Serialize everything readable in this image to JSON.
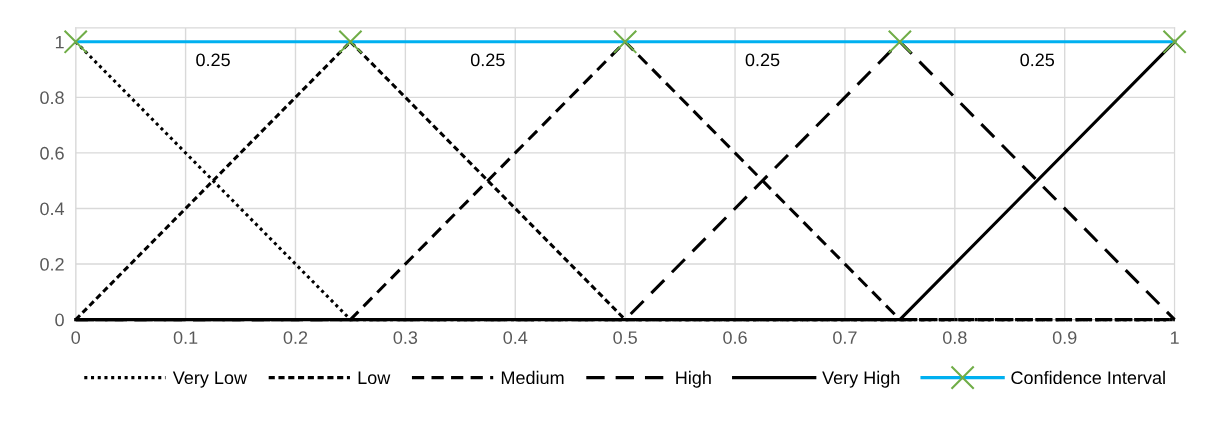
{
  "chart_data": {
    "type": "line",
    "xlim": [
      0,
      1
    ],
    "ylim": [
      0,
      1.05
    ],
    "xticks": [
      0,
      0.1,
      0.2,
      0.3,
      0.4,
      0.5,
      0.6,
      0.7,
      0.8,
      0.9,
      1
    ],
    "yticks": [
      0,
      0.2,
      0.4,
      0.6,
      0.8,
      1
    ],
    "grid": true,
    "legend": "bottom",
    "series": [
      {
        "name": "Very Low",
        "color": "#000000",
        "line_style": "dotted",
        "marker": "none",
        "x": [
          0,
          0.25,
          1
        ],
        "values": [
          1,
          0,
          0
        ]
      },
      {
        "name": "Low",
        "color": "#000000",
        "line_style": "dashed",
        "marker": "none",
        "x": [
          0,
          0.25,
          0.5,
          1
        ],
        "values": [
          0,
          1,
          0,
          0
        ]
      },
      {
        "name": "Medium",
        "color": "#000000",
        "line_style": "dashed",
        "marker": "none",
        "x": [
          0,
          0.25,
          0.5,
          0.75,
          1
        ],
        "values": [
          0,
          0,
          1,
          0,
          0
        ]
      },
      {
        "name": "High",
        "color": "#000000",
        "line_style": "dashed",
        "marker": "none",
        "x": [
          0,
          0.5,
          0.75,
          1
        ],
        "values": [
          0,
          0,
          1,
          0
        ]
      },
      {
        "name": "Very High",
        "color": "#000000",
        "line_style": "solid",
        "marker": "none",
        "x": [
          0,
          0.75,
          1
        ],
        "values": [
          0,
          0,
          1
        ]
      },
      {
        "name": "Confidence Interval",
        "color": "#00b0f0",
        "colors": [
          "#70ad47",
          "#70ad47",
          "#70ad47",
          "#70ad47",
          "#70ad47"
        ],
        "line_style": "solid",
        "marker": "cross",
        "x": [
          0,
          0.25,
          0.5,
          0.75,
          1
        ],
        "values": [
          1,
          1,
          1,
          1,
          1
        ]
      }
    ],
    "annotations": [
      "0.25",
      "0.25",
      "0.25",
      "0.25"
    ]
  }
}
